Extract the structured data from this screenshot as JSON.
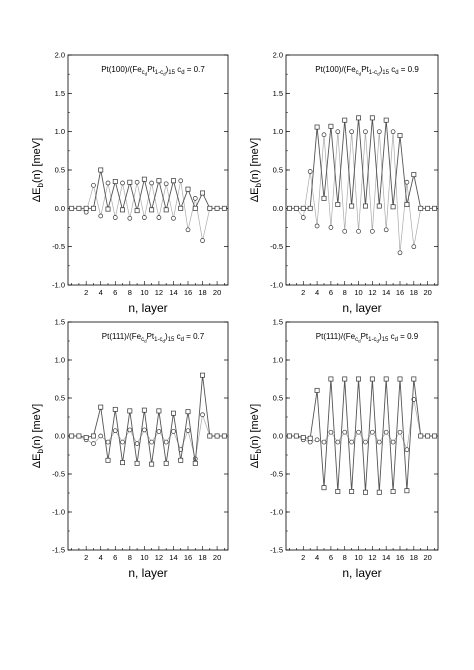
{
  "chart_data": [
    {
      "type": "line",
      "title": "Pt(100)/(Fe_cd Pt_1-cd)_15  c_d = 0.7",
      "annotation": {
        "prefix": "Pt(100)/(Fe",
        "sub1": "c",
        "sub1b": "d",
        "mid": "Pt",
        "sub2": "1-c",
        "sub2b": "d",
        "close": ")",
        "sub3": "15",
        "c": "c",
        "csub": "d",
        "eq": "= 0.7"
      },
      "xlabel": "n, layer",
      "ylabel": {
        "main": "ΔE",
        "sub": "b",
        "rest": "(n)  [meV]"
      },
      "x": [
        0,
        1,
        2,
        3,
        4,
        5,
        6,
        7,
        8,
        9,
        10,
        11,
        12,
        13,
        14,
        15,
        16,
        17,
        18,
        19,
        20,
        21
      ],
      "xticks": [
        2,
        4,
        6,
        8,
        10,
        12,
        14,
        16,
        18,
        20
      ],
      "ylim": [
        -1.0,
        2.0
      ],
      "yticks": [
        "-1.0",
        "-0.5",
        "0.0",
        "0.5",
        "1.0",
        "1.5",
        "2.0"
      ],
      "series": [
        {
          "marker": "square",
          "color": "#555555",
          "values": [
            0,
            0,
            0,
            0,
            0.5,
            -0.01,
            0.35,
            -0.02,
            0.34,
            -0.03,
            0.38,
            -0.02,
            0.36,
            -0.02,
            0.36,
            0.0,
            0.25,
            0.0,
            0.2,
            0,
            0,
            0
          ]
        },
        {
          "marker": "circle",
          "color": "#aaaaaa",
          "values": [
            0,
            0,
            -0.05,
            0.3,
            -0.1,
            0.33,
            -0.12,
            0.33,
            -0.13,
            0.34,
            -0.12,
            0.33,
            -0.12,
            0.32,
            -0.13,
            0.36,
            -0.28,
            0.13,
            -0.42,
            0,
            0,
            0
          ]
        }
      ]
    },
    {
      "type": "line",
      "title": "Pt(100)/(Fe_cd Pt_1-cd)_15  c_d = 0.9",
      "annotation": {
        "prefix": "Pt(100)/(Fe",
        "sub1": "c",
        "sub1b": "d",
        "mid": "Pt",
        "sub2": "1-c",
        "sub2b": "d",
        "close": ")",
        "sub3": "15",
        "c": "c",
        "csub": "d",
        "eq": "= 0.9"
      },
      "xlabel": "n, layer",
      "ylabel": {
        "main": "ΔE",
        "sub": "b",
        "rest": "(n)  [meV]"
      },
      "x": [
        0,
        1,
        2,
        3,
        4,
        5,
        6,
        7,
        8,
        9,
        10,
        11,
        12,
        13,
        14,
        15,
        16,
        17,
        18,
        19,
        20,
        21
      ],
      "xticks": [
        2,
        4,
        6,
        8,
        10,
        12,
        14,
        16,
        18,
        20
      ],
      "ylim": [
        -1.0,
        2.0
      ],
      "yticks": [
        "-1.0",
        "-0.5",
        "0.0",
        "0.5",
        "1.0",
        "1.5",
        "2.0"
      ],
      "series": [
        {
          "marker": "square",
          "color": "#555555",
          "values": [
            0,
            0,
            0,
            0,
            1.06,
            0.13,
            1.07,
            0.05,
            1.15,
            0.03,
            1.18,
            0.03,
            1.18,
            0.03,
            1.15,
            0.02,
            0.95,
            0.05,
            0.44,
            0,
            0,
            0
          ]
        },
        {
          "marker": "circle",
          "color": "#aaaaaa",
          "values": [
            0,
            0,
            -0.12,
            0.48,
            -0.23,
            0.96,
            -0.25,
            1.0,
            -0.3,
            1.0,
            -0.3,
            1.0,
            -0.3,
            1.0,
            -0.28,
            1.0,
            -0.58,
            0.34,
            -0.5,
            0,
            0,
            0
          ]
        }
      ]
    },
    {
      "type": "line",
      "title": "Pt(111)/(Fe_cd Pt_1-cd)_15  c_d = 0.7",
      "annotation": {
        "prefix": "Pt(111)/(Fe",
        "sub1": "c",
        "sub1b": "d",
        "mid": "Pt",
        "sub2": "1-c",
        "sub2b": "d",
        "close": ")",
        "sub3": "15",
        "c": "c",
        "csub": "d",
        "eq": "= 0.7"
      },
      "xlabel": "n, layer",
      "ylabel": {
        "main": "ΔE",
        "sub": "b",
        "rest": "(n)  [meV]"
      },
      "x": [
        0,
        1,
        2,
        3,
        4,
        5,
        6,
        7,
        8,
        9,
        10,
        11,
        12,
        13,
        14,
        15,
        16,
        17,
        18,
        19,
        20,
        21
      ],
      "xticks": [
        2,
        4,
        6,
        8,
        10,
        12,
        14,
        16,
        18,
        20
      ],
      "ylim": [
        -1.5,
        1.5
      ],
      "yticks": [
        "-1.5",
        "-1.0",
        "-0.5",
        "0.0",
        "0.5",
        "1.0",
        "1.5"
      ],
      "series": [
        {
          "marker": "square",
          "color": "#555555",
          "values": [
            0,
            0,
            -0.02,
            0.0,
            0.38,
            -0.32,
            0.35,
            -0.35,
            0.33,
            -0.36,
            0.34,
            -0.37,
            0.33,
            -0.36,
            0.3,
            -0.32,
            0.32,
            -0.36,
            0.8,
            0,
            0,
            0
          ]
        },
        {
          "marker": "circle",
          "color": "#aaaaaa",
          "values": [
            0,
            0,
            -0.05,
            -0.1,
            0.0,
            -0.08,
            0.07,
            -0.08,
            0.08,
            -0.1,
            0.08,
            -0.08,
            0.06,
            -0.08,
            0.06,
            -0.18,
            0.07,
            -0.3,
            0.28,
            0,
            0,
            0
          ]
        }
      ]
    },
    {
      "type": "line",
      "title": "Pt(111)/(Fe_cd Pt_1-cd)_15  c_d = 0.9",
      "annotation": {
        "prefix": "Pt(111)/(Fe",
        "sub1": "c",
        "sub1b": "d",
        "mid": "Pt",
        "sub2": "1-c",
        "sub2b": "d",
        "close": ")",
        "sub3": "15",
        "c": "c",
        "csub": "d",
        "eq": "= 0.9"
      },
      "xlabel": "n, layer",
      "ylabel": {
        "main": "ΔE",
        "sub": "b",
        "rest": "(n)  [meV]"
      },
      "x": [
        0,
        1,
        2,
        3,
        4,
        5,
        6,
        7,
        8,
        9,
        10,
        11,
        12,
        13,
        14,
        15,
        16,
        17,
        18,
        19,
        20,
        21
      ],
      "xticks": [
        2,
        4,
        6,
        8,
        10,
        12,
        14,
        16,
        18,
        20
      ],
      "ylim": [
        -1.5,
        1.5
      ],
      "yticks": [
        "-1.5",
        "-1.0",
        "-0.5",
        "0.0",
        "0.5",
        "1.0",
        "1.5"
      ],
      "series": [
        {
          "marker": "square",
          "color": "#555555",
          "values": [
            0,
            0,
            -0.02,
            -0.03,
            0.6,
            -0.68,
            0.75,
            -0.73,
            0.75,
            -0.73,
            0.75,
            -0.74,
            0.75,
            -0.74,
            0.75,
            -0.73,
            0.75,
            -0.72,
            0.75,
            0,
            0,
            0
          ]
        },
        {
          "marker": "circle",
          "color": "#aaaaaa",
          "values": [
            0,
            0,
            -0.05,
            -0.08,
            -0.05,
            -0.08,
            0.05,
            -0.08,
            0.05,
            -0.08,
            0.05,
            -0.08,
            0.05,
            -0.08,
            0.05,
            -0.08,
            0.05,
            -0.18,
            0.48,
            0,
            0,
            0
          ]
        }
      ]
    }
  ]
}
